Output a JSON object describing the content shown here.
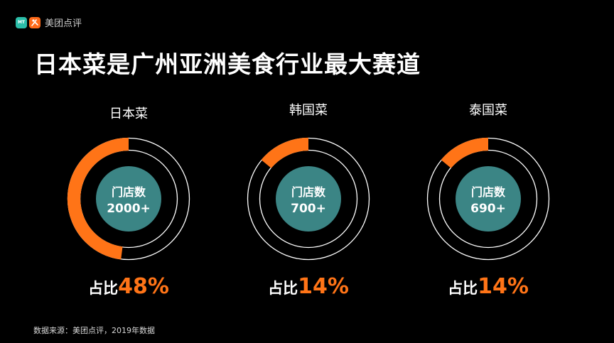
{
  "brand": {
    "name": "美团点评",
    "logo_mt_text": "MT"
  },
  "title": "日本菜是广州亚洲美食行业最大赛道",
  "source": "数据来源：美团点评，2019年数据",
  "colors": {
    "accent": "#ff7417",
    "center": "#3b8585",
    "ring": "#ffffff",
    "background": "#000000"
  },
  "chart_data": {
    "type": "donut",
    "center_label": "门店数",
    "share_prefix": "占比",
    "items": [
      {
        "name": "日本菜",
        "store_count": "2000+",
        "share_percent": 48,
        "share_label": "48%"
      },
      {
        "name": "韩国菜",
        "store_count": "700+",
        "share_percent": 14,
        "share_label": "14%"
      },
      {
        "name": "泰国菜",
        "store_count": "690+",
        "share_percent": 14,
        "share_label": "14%"
      }
    ]
  }
}
